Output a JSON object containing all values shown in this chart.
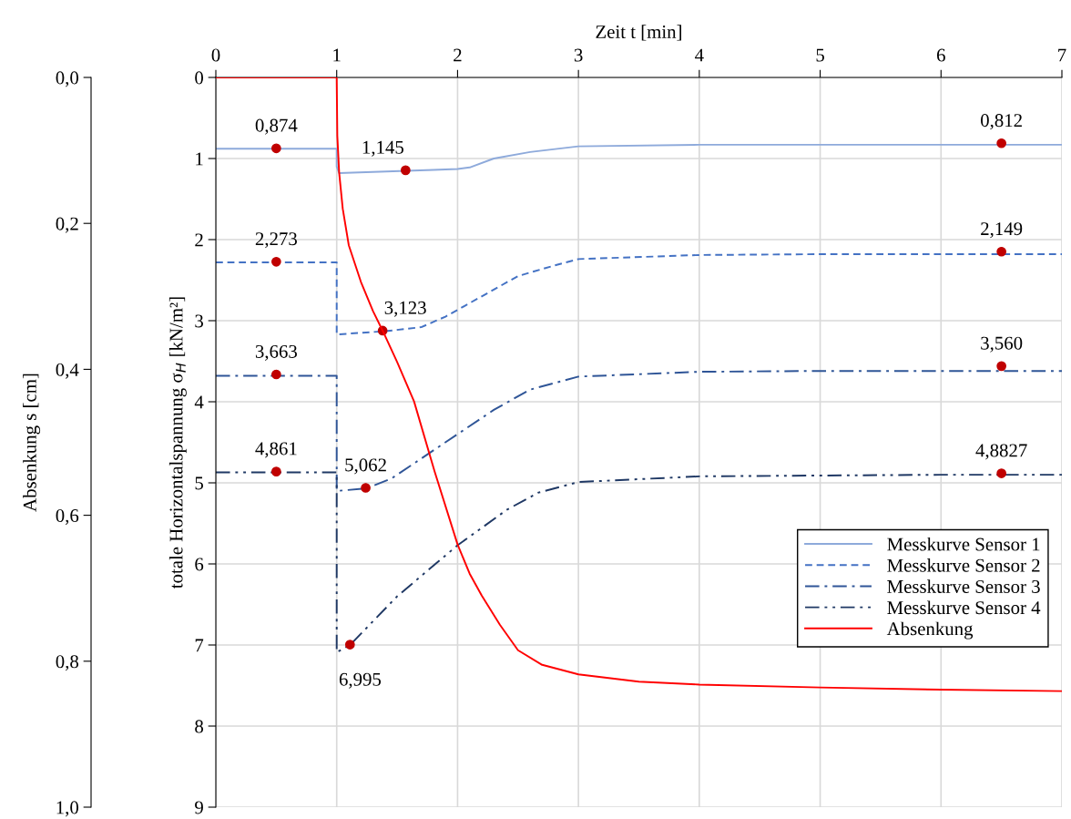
{
  "chart_data": {
    "type": "line",
    "xlabel": "Zeit t [min]",
    "ylabel": "totale Horizontalspannung σ$_{H}$ [kN/m²]",
    "y2label": "Absenkung s [cm]",
    "xlim": [
      0,
      7
    ],
    "xticks": [
      0,
      1,
      2,
      3,
      4,
      5,
      6,
      7
    ],
    "ylim": [
      9,
      0
    ],
    "yticks": [
      0,
      1,
      2,
      3,
      4,
      5,
      6,
      7,
      8,
      9
    ],
    "y2lim": [
      1.0,
      0.0
    ],
    "y2ticks": [
      {
        "value": 0,
        "label": "0,0"
      },
      {
        "value": 0.2,
        "label": "0,2"
      },
      {
        "value": 0.4,
        "label": "0,4"
      },
      {
        "value": 0.6,
        "label": "0,6"
      },
      {
        "value": 0.8,
        "label": "0,8"
      },
      {
        "value": 1.0,
        "label": "1,0"
      }
    ],
    "grid": true,
    "legend": "right",
    "series": [
      {
        "name": "Messkurve Sensor 1",
        "color": "#8eaadb",
        "line_style": "solid",
        "x": [
          0,
          1.0,
          1.0,
          1.02,
          1.8,
          2.0,
          2.1,
          2.3,
          2.6,
          3.0,
          4.0,
          5.0,
          6.0,
          7.0
        ],
        "values": [
          0.88,
          0.88,
          1.1,
          1.18,
          1.14,
          1.13,
          1.11,
          1.0,
          0.92,
          0.85,
          0.83,
          0.83,
          0.83,
          0.83
        ]
      },
      {
        "name": "Messkurve Sensor 2",
        "color": "#4472c4",
        "line_style": "dashed",
        "x": [
          0,
          1.0,
          1.0,
          1.4,
          1.7,
          1.9,
          2.2,
          2.5,
          2.8,
          3.0,
          4.0,
          5.0,
          6.0,
          7.0
        ],
        "values": [
          2.28,
          2.28,
          3.17,
          3.13,
          3.08,
          2.95,
          2.7,
          2.45,
          2.32,
          2.24,
          2.19,
          2.18,
          2.18,
          2.18
        ]
      },
      {
        "name": "Messkurve Sensor 3",
        "color": "#2f5597",
        "line_style": "dashdot",
        "x": [
          0,
          1.0,
          1.0,
          1.24,
          1.45,
          1.8,
          2.0,
          2.3,
          2.6,
          3.0,
          4.0,
          5.0,
          6.0,
          7.0
        ],
        "values": [
          3.68,
          3.68,
          5.1,
          5.07,
          4.95,
          4.6,
          4.4,
          4.1,
          3.85,
          3.69,
          3.63,
          3.62,
          3.62,
          3.62
        ]
      },
      {
        "name": "Messkurve Sensor 4",
        "color": "#1f3864",
        "line_style": "dashdotdot",
        "x": [
          0,
          1.0,
          1.0,
          1.11,
          1.5,
          2.0,
          2.41,
          2.67,
          3.0,
          4.0,
          5.0,
          6.0,
          7.0
        ],
        "values": [
          4.87,
          4.87,
          7.09,
          7.0,
          6.4,
          5.77,
          5.33,
          5.12,
          4.99,
          4.92,
          4.91,
          4.9,
          4.9
        ]
      },
      {
        "name": "Absenkung",
        "color": "#ff0000",
        "line_style": "solid",
        "axis": "y2",
        "x": [
          0,
          1.0,
          1.005,
          1.02,
          1.05,
          1.1,
          1.2,
          1.3,
          1.38,
          1.5,
          1.64,
          1.81,
          2.0,
          2.1,
          2.2,
          2.35,
          2.5,
          2.7,
          3.0,
          3.5,
          4.0,
          5.0,
          6.0,
          7.0
        ],
        "values": [
          0,
          0,
          0.08,
          0.13,
          0.18,
          0.23,
          0.28,
          0.32,
          0.347,
          0.39,
          0.444,
          0.54,
          0.64,
          0.68,
          0.71,
          0.75,
          0.785,
          0.805,
          0.818,
          0.828,
          0.832,
          0.836,
          0.839,
          0.841
        ]
      },
      {
        "type": "scatter",
        "color": "#c00000",
        "marker": "circle",
        "x": [
          0.5,
          0.5,
          0.5,
          0.5,
          1.57,
          1.38,
          1.24,
          1.11,
          6.5,
          6.5,
          6.5,
          6.5
        ],
        "values": [
          0.874,
          2.273,
          3.663,
          4.861,
          1.145,
          3.123,
          5.062,
          6.995,
          0.812,
          2.149,
          3.56,
          4.8827
        ],
        "value_labels": [
          "0,874",
          "2,273",
          "3,663",
          "4,861",
          "1,145",
          "3,123",
          "5,062",
          "6,995",
          "0,812",
          "2,149",
          "3,560",
          "4,8827"
        ]
      }
    ]
  }
}
